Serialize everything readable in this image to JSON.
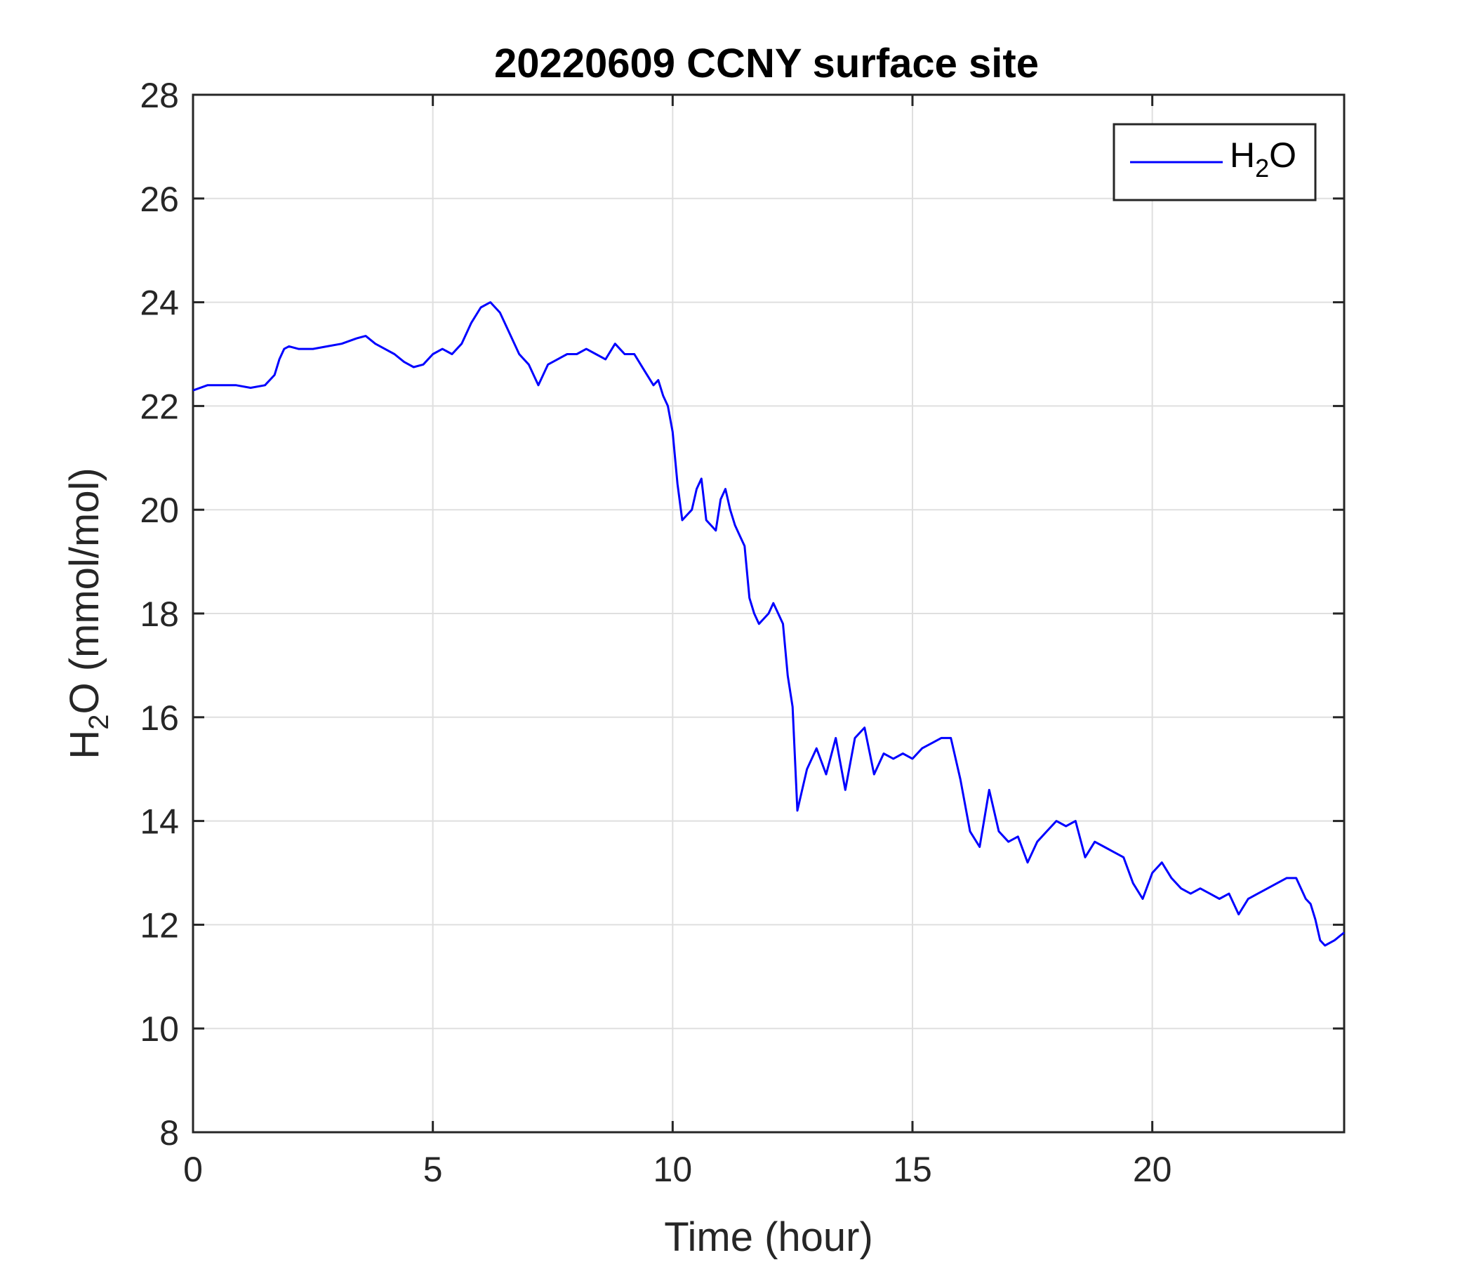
{
  "chart_data": {
    "type": "line",
    "title": "20220609 CCNY surface site",
    "xlabel": "Time (hour)",
    "ylabel": {
      "main": "H",
      "subscript": "2",
      "rest": "O (mmol/mol)"
    },
    "xlim": [
      0,
      24
    ],
    "ylim": [
      8,
      28
    ],
    "xticks": [
      0,
      5,
      10,
      15,
      20
    ],
    "yticks": [
      8,
      10,
      12,
      14,
      16,
      18,
      20,
      22,
      24,
      26,
      28
    ],
    "grid": true,
    "legend": {
      "placement": "top-right"
    },
    "series": [
      {
        "name": {
          "main": "H",
          "subscript": "2",
          "rest": "O"
        },
        "color": "#0000ff",
        "x": [
          0,
          0.3,
          0.6,
          0.9,
          1.2,
          1.5,
          1.7,
          1.8,
          1.9,
          2.0,
          2.2,
          2.5,
          2.8,
          3.1,
          3.4,
          3.6,
          3.8,
          4.0,
          4.2,
          4.4,
          4.6,
          4.8,
          5.0,
          5.2,
          5.4,
          5.6,
          5.8,
          6.0,
          6.2,
          6.4,
          6.6,
          6.8,
          7.0,
          7.2,
          7.4,
          7.6,
          7.8,
          8.0,
          8.2,
          8.4,
          8.6,
          8.8,
          9.0,
          9.2,
          9.4,
          9.6,
          9.7,
          9.8,
          9.9,
          10.0,
          10.1,
          10.2,
          10.3,
          10.4,
          10.5,
          10.6,
          10.7,
          10.8,
          10.9,
          11.0,
          11.1,
          11.2,
          11.3,
          11.4,
          11.5,
          11.6,
          11.7,
          11.8,
          11.9,
          12.0,
          12.1,
          12.2,
          12.3,
          12.4,
          12.5,
          12.6,
          12.7,
          12.8,
          13.0,
          13.2,
          13.4,
          13.6,
          13.8,
          14.0,
          14.2,
          14.4,
          14.6,
          14.8,
          15.0,
          15.2,
          15.4,
          15.6,
          15.8,
          16.0,
          16.2,
          16.4,
          16.6,
          16.8,
          17.0,
          17.2,
          17.4,
          17.6,
          17.8,
          18.0,
          18.2,
          18.4,
          18.6,
          18.8,
          19.0,
          19.2,
          19.4,
          19.6,
          19.8,
          20.0,
          20.2,
          20.4,
          20.6,
          20.8,
          21.0,
          21.2,
          21.4,
          21.6,
          21.8,
          22.0,
          22.2,
          22.4,
          22.6,
          22.8,
          23.0,
          23.2,
          23.3,
          23.4,
          23.5,
          23.6,
          23.8,
          24.0
        ],
        "values": [
          22.3,
          22.4,
          22.4,
          22.4,
          22.35,
          22.4,
          22.6,
          22.9,
          23.1,
          23.15,
          23.1,
          23.1,
          23.15,
          23.2,
          23.3,
          23.35,
          23.2,
          23.1,
          23.0,
          22.85,
          22.75,
          22.8,
          23.0,
          23.1,
          23.0,
          23.2,
          23.6,
          23.9,
          24.0,
          23.8,
          23.4,
          23.0,
          22.8,
          22.4,
          22.8,
          22.9,
          23.0,
          23.0,
          23.1,
          23.0,
          22.9,
          23.2,
          23.0,
          23.0,
          22.7,
          22.4,
          22.5,
          22.2,
          22.0,
          21.5,
          20.5,
          19.8,
          19.9,
          20.0,
          20.4,
          20.6,
          19.8,
          19.7,
          19.6,
          20.2,
          20.4,
          20.0,
          19.7,
          19.5,
          19.3,
          18.3,
          18.0,
          17.8,
          17.9,
          18.0,
          18.2,
          18.0,
          17.8,
          16.8,
          16.2,
          14.2,
          14.6,
          15.0,
          15.4,
          14.9,
          15.6,
          14.6,
          15.6,
          15.8,
          14.9,
          15.3,
          15.2,
          15.3,
          15.2,
          15.4,
          15.5,
          15.6,
          15.6,
          14.8,
          13.8,
          13.5,
          14.6,
          13.8,
          13.6,
          13.7,
          13.2,
          13.6,
          13.8,
          14.0,
          13.9,
          14.0,
          13.3,
          13.6,
          13.5,
          13.4,
          13.3,
          12.8,
          12.5,
          13.0,
          13.2,
          12.9,
          12.7,
          12.6,
          12.7,
          12.6,
          12.5,
          12.6,
          12.2,
          12.5,
          12.6,
          12.7,
          12.8,
          12.9,
          12.9,
          12.5,
          12.4,
          12.1,
          11.7,
          11.6,
          11.7,
          11.85
        ]
      }
    ]
  }
}
